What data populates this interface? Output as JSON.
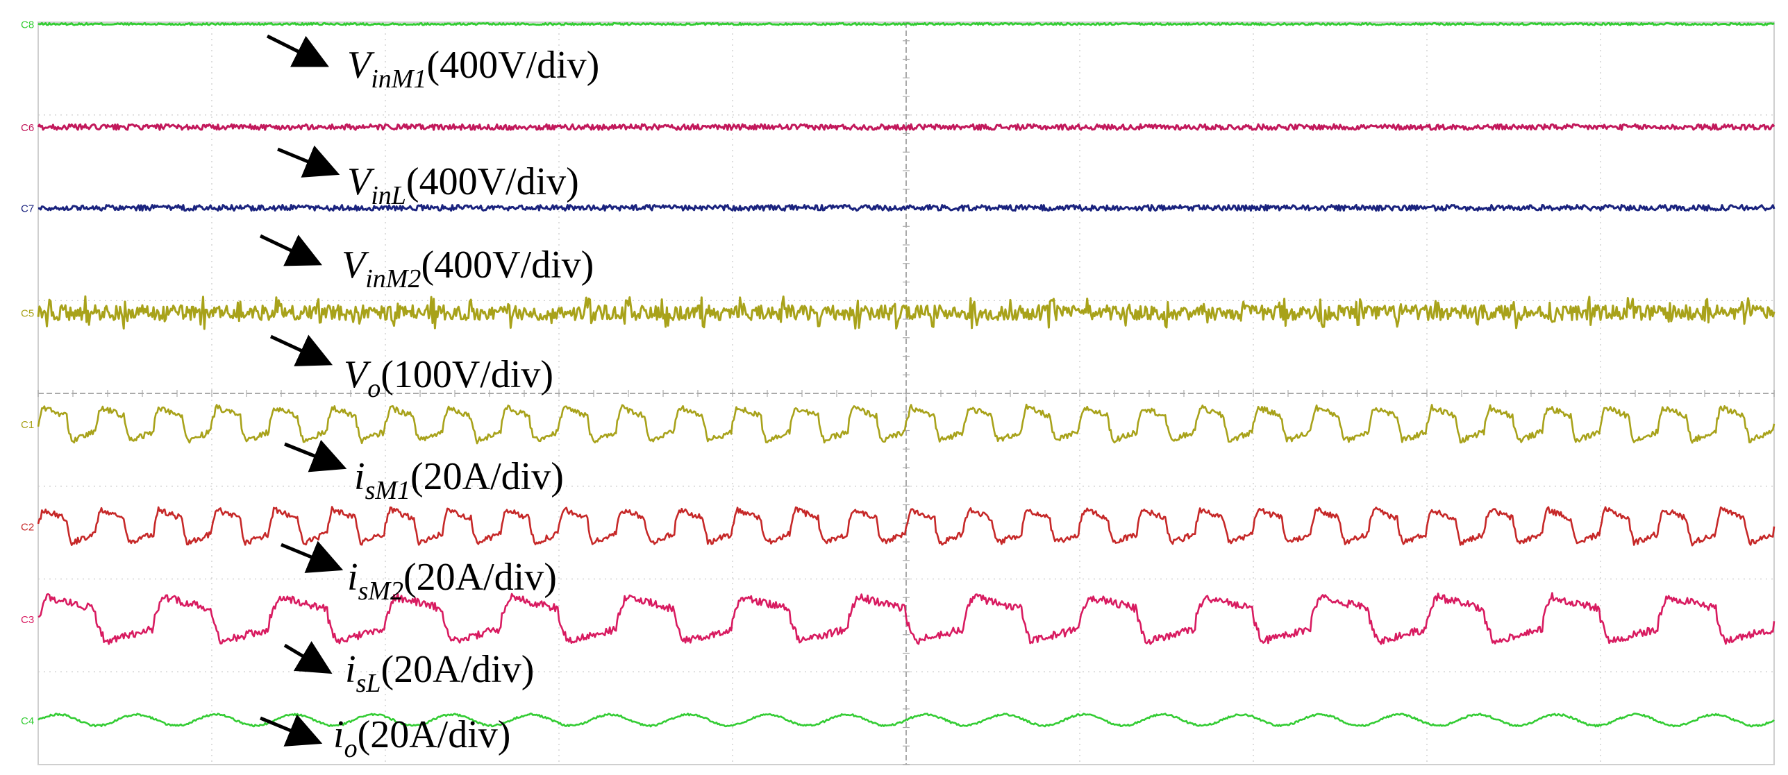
{
  "chart_data": {
    "type": "line",
    "title": "",
    "xlabel": "",
    "ylabel": "",
    "grid": true,
    "grid_divisions": {
      "x": 10,
      "y": 8
    },
    "series": [
      {
        "channel": "C8",
        "var": "V",
        "sub": "inM1",
        "scale": "(400V/div)",
        "color": "#33cc33",
        "level_div": 7.98,
        "shape": "flat",
        "ripple_div": 0.01,
        "cycles": 0
      },
      {
        "channel": "C6",
        "var": "V",
        "sub": "inL",
        "scale": "(400V/div)",
        "color": "#c2185b",
        "level_div": 6.87,
        "shape": "flat",
        "ripple_div": 0.03,
        "cycles": 0
      },
      {
        "channel": "C7",
        "var": "V",
        "sub": "inM2",
        "scale": "(400V/div)",
        "color": "#1a237e",
        "level_div": 6.0,
        "shape": "flat",
        "ripple_div": 0.03,
        "cycles": 0
      },
      {
        "channel": "C5",
        "var": "V",
        "sub": "o",
        "scale": "(100V/div)",
        "color": "#a8a21a",
        "level_div": 4.87,
        "shape": "flat",
        "ripple_div": 0.08,
        "cycles": 0
      },
      {
        "channel": "C1",
        "var": "i",
        "sub": "sM1",
        "scale": "(20A/div)",
        "color": "#a8a21a",
        "level_div": 3.67,
        "shape": "distorted",
        "ripple_div": 0.18,
        "cycles": 30
      },
      {
        "channel": "C2",
        "var": "i",
        "sub": "sM2",
        "scale": "(20A/div)",
        "color": "#c62828",
        "level_div": 2.57,
        "shape": "distorted",
        "ripple_div": 0.18,
        "cycles": 30
      },
      {
        "channel": "C3",
        "var": "i",
        "sub": "sL",
        "scale": "(20A/div)",
        "color": "#d81b60",
        "level_div": 1.57,
        "shape": "distorted",
        "ripple_div": 0.24,
        "cycles": 15
      },
      {
        "channel": "C4",
        "var": "i",
        "sub": "o",
        "scale": "(20A/div)",
        "color": "#33cc33",
        "level_div": 0.48,
        "shape": "sine",
        "ripple_div": 0.06,
        "cycles": 22
      }
    ]
  }
}
